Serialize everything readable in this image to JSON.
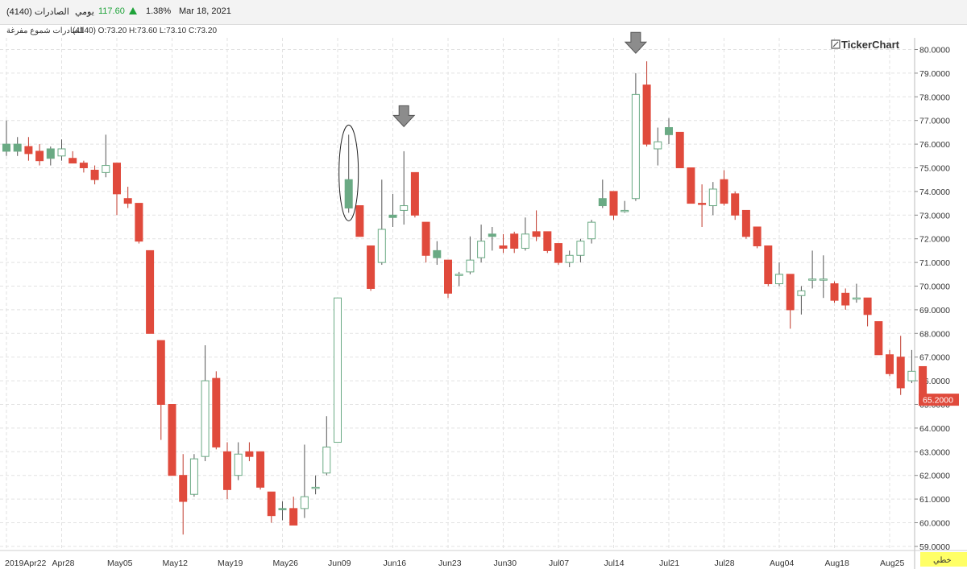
{
  "header": {
    "instrument": "الصادرات (4140)",
    "period": "يومي",
    "price": "117.60",
    "change_pct": "1.38%",
    "date": "Mar 18, 2021",
    "up_color": "#1fa33a",
    "up_icon": "triangle-up-icon"
  },
  "subheader": {
    "series_name": "الصادرات شموع مفرغة",
    "ohlc": "(4140) O:73.20 H:73.60 L:73.10 C:73.20"
  },
  "logo": {
    "text": "TickerChart",
    "icon": "tickerchart-logo-icon"
  },
  "last_price_label": "65.2000",
  "scale_mode": "خطي",
  "colors": {
    "up_fill": "#6aaa84",
    "down_fill": "#e04a3c",
    "hollow_stroke": "#6aaa84",
    "grid": "#e2e2e2",
    "last_bg": "#e04a3c",
    "mode_bg": "#ffff66"
  },
  "chart_data": {
    "type": "candlestick",
    "ylim": [
      59,
      80
    ],
    "y_ticks": [
      "59.0000",
      "60.0000",
      "61.0000",
      "62.0000",
      "63.0000",
      "64.0000",
      "65.0000",
      "66.0000",
      "67.0000",
      "68.0000",
      "69.0000",
      "70.0000",
      "71.0000",
      "72.0000",
      "73.0000",
      "74.0000",
      "75.0000",
      "76.0000",
      "77.0000",
      "78.0000",
      "79.0000",
      "80.0000"
    ],
    "x_ticks": [
      {
        "label": "2019Apr22",
        "index": 0
      },
      {
        "label": "Apr28",
        "index": 5
      },
      {
        "label": "May05",
        "index": 10
      },
      {
        "label": "May12",
        "index": 15
      },
      {
        "label": "May19",
        "index": 20
      },
      {
        "label": "May26",
        "index": 25
      },
      {
        "label": "Jun09",
        "index": 30
      },
      {
        "label": "Jun16",
        "index": 35
      },
      {
        "label": "Jun23",
        "index": 40
      },
      {
        "label": "Jun30",
        "index": 45
      },
      {
        "label": "Jul07",
        "index": 50
      },
      {
        "label": "Jul14",
        "index": 55
      },
      {
        "label": "Jul21",
        "index": 60
      },
      {
        "label": "Jul28",
        "index": 65
      },
      {
        "label": "Aug04",
        "index": 70
      },
      {
        "label": "Aug18",
        "index": 75
      },
      {
        "label": "Aug25",
        "index": 80
      }
    ],
    "candles": [
      {
        "o": 75.7,
        "h": 77.0,
        "l": 75.5,
        "c": 76.0,
        "style": "filled-up"
      },
      {
        "o": 75.7,
        "h": 76.3,
        "l": 75.5,
        "c": 76.0,
        "style": "filled-up"
      },
      {
        "o": 75.9,
        "h": 76.3,
        "l": 75.3,
        "c": 75.6,
        "style": "down"
      },
      {
        "o": 75.7,
        "h": 76.0,
        "l": 75.1,
        "c": 75.3,
        "style": "down"
      },
      {
        "o": 75.4,
        "h": 75.9,
        "l": 75.1,
        "c": 75.8,
        "style": "filled-up"
      },
      {
        "o": 75.5,
        "h": 76.2,
        "l": 75.3,
        "c": 75.8,
        "style": "hollow"
      },
      {
        "o": 75.4,
        "h": 75.7,
        "l": 75.2,
        "c": 75.2,
        "style": "down"
      },
      {
        "o": 75.2,
        "h": 75.3,
        "l": 74.8,
        "c": 75.0,
        "style": "down"
      },
      {
        "o": 74.9,
        "h": 75.1,
        "l": 74.3,
        "c": 74.5,
        "style": "down"
      },
      {
        "o": 74.8,
        "h": 76.4,
        "l": 74.6,
        "c": 75.1,
        "style": "hollow"
      },
      {
        "o": 75.2,
        "h": 75.2,
        "l": 73.0,
        "c": 73.9,
        "style": "down"
      },
      {
        "o": 73.7,
        "h": 74.2,
        "l": 73.3,
        "c": 73.5,
        "style": "down"
      },
      {
        "o": 73.5,
        "h": 73.5,
        "l": 71.8,
        "c": 71.9,
        "style": "down"
      },
      {
        "o": 71.5,
        "h": 71.5,
        "l": 68.0,
        "c": 68.0,
        "style": "down"
      },
      {
        "o": 67.7,
        "h": 67.7,
        "l": 63.5,
        "c": 65.0,
        "style": "down"
      },
      {
        "o": 65.0,
        "h": 65.0,
        "l": 62.0,
        "c": 62.0,
        "style": "down"
      },
      {
        "o": 62.0,
        "h": 62.9,
        "l": 59.5,
        "c": 60.9,
        "style": "down"
      },
      {
        "o": 61.2,
        "h": 62.9,
        "l": 61.1,
        "c": 62.7,
        "style": "hollow"
      },
      {
        "o": 62.8,
        "h": 67.5,
        "l": 62.6,
        "c": 66.0,
        "style": "hollow"
      },
      {
        "o": 66.1,
        "h": 66.4,
        "l": 63.1,
        "c": 63.2,
        "style": "down"
      },
      {
        "o": 63.0,
        "h": 63.4,
        "l": 61.0,
        "c": 61.4,
        "style": "down"
      },
      {
        "o": 62.0,
        "h": 63.4,
        "l": 61.8,
        "c": 62.9,
        "style": "hollow"
      },
      {
        "o": 63.0,
        "h": 63.4,
        "l": 62.6,
        "c": 62.8,
        "style": "down"
      },
      {
        "o": 63.0,
        "h": 63.0,
        "l": 61.4,
        "c": 61.5,
        "style": "down"
      },
      {
        "o": 61.3,
        "h": 61.3,
        "l": 60.0,
        "c": 60.3,
        "style": "down"
      },
      {
        "o": 60.6,
        "h": 60.9,
        "l": 60.1,
        "c": 60.6,
        "style": "filled-up"
      },
      {
        "o": 60.6,
        "h": 61.1,
        "l": 59.9,
        "c": 59.9,
        "style": "down"
      },
      {
        "o": 60.6,
        "h": 63.3,
        "l": 60.2,
        "c": 61.1,
        "style": "hollow"
      },
      {
        "o": 61.5,
        "h": 62.0,
        "l": 61.2,
        "c": 61.5,
        "style": "hollow"
      },
      {
        "o": 62.1,
        "h": 64.5,
        "l": 62.0,
        "c": 63.2,
        "style": "hollow"
      },
      {
        "o": 63.4,
        "h": 69.5,
        "l": 63.4,
        "c": 69.5,
        "style": "hollow"
      },
      {
        "o": 73.3,
        "h": 76.4,
        "l": 73.1,
        "c": 74.5,
        "style": "filled-up"
      },
      {
        "o": 73.4,
        "h": 73.4,
        "l": 72.1,
        "c": 72.1,
        "style": "down"
      },
      {
        "o": 71.7,
        "h": 71.7,
        "l": 69.8,
        "c": 69.9,
        "style": "down"
      },
      {
        "o": 71.0,
        "h": 74.5,
        "l": 70.9,
        "c": 72.4,
        "style": "hollow"
      },
      {
        "o": 73.0,
        "h": 73.9,
        "l": 72.5,
        "c": 72.9,
        "style": "filled-up"
      },
      {
        "o": 73.2,
        "h": 75.7,
        "l": 72.6,
        "c": 73.4,
        "style": "hollow"
      },
      {
        "o": 74.8,
        "h": 74.8,
        "l": 72.9,
        "c": 73.0,
        "style": "down"
      },
      {
        "o": 72.7,
        "h": 72.7,
        "l": 71.0,
        "c": 71.3,
        "style": "down"
      },
      {
        "o": 71.5,
        "h": 71.9,
        "l": 70.9,
        "c": 71.2,
        "style": "filled-up"
      },
      {
        "o": 71.1,
        "h": 71.1,
        "l": 69.5,
        "c": 69.7,
        "style": "down"
      },
      {
        "o": 70.5,
        "h": 70.6,
        "l": 70.0,
        "c": 70.5,
        "style": "hollow"
      },
      {
        "o": 70.6,
        "h": 72.1,
        "l": 70.5,
        "c": 71.1,
        "style": "hollow"
      },
      {
        "o": 71.2,
        "h": 72.6,
        "l": 71.0,
        "c": 71.9,
        "style": "hollow"
      },
      {
        "o": 72.1,
        "h": 72.5,
        "l": 71.5,
        "c": 72.2,
        "style": "filled-up"
      },
      {
        "o": 71.7,
        "h": 72.2,
        "l": 71.4,
        "c": 71.6,
        "style": "down"
      },
      {
        "o": 72.2,
        "h": 72.3,
        "l": 71.4,
        "c": 71.6,
        "style": "down"
      },
      {
        "o": 71.6,
        "h": 72.9,
        "l": 71.5,
        "c": 72.2,
        "style": "hollow"
      },
      {
        "o": 72.3,
        "h": 73.2,
        "l": 71.9,
        "c": 72.1,
        "style": "down"
      },
      {
        "o": 72.3,
        "h": 72.3,
        "l": 71.4,
        "c": 71.5,
        "style": "down"
      },
      {
        "o": 71.8,
        "h": 71.8,
        "l": 70.9,
        "c": 71.0,
        "style": "down"
      },
      {
        "o": 71.0,
        "h": 71.5,
        "l": 70.8,
        "c": 71.3,
        "style": "hollow"
      },
      {
        "o": 71.3,
        "h": 72.0,
        "l": 71.0,
        "c": 71.9,
        "style": "hollow"
      },
      {
        "o": 72.0,
        "h": 72.8,
        "l": 71.8,
        "c": 72.7,
        "style": "hollow"
      },
      {
        "o": 73.4,
        "h": 74.5,
        "l": 73.3,
        "c": 73.7,
        "style": "filled-up"
      },
      {
        "o": 74.0,
        "h": 74.0,
        "l": 72.8,
        "c": 73.0,
        "style": "down"
      },
      {
        "o": 73.2,
        "h": 73.6,
        "l": 73.1,
        "c": 73.2,
        "style": "hollow"
      },
      {
        "o": 73.7,
        "h": 79.0,
        "l": 73.6,
        "c": 78.1,
        "style": "hollow"
      },
      {
        "o": 78.5,
        "h": 79.5,
        "l": 75.9,
        "c": 76.0,
        "style": "down"
      },
      {
        "o": 75.8,
        "h": 76.7,
        "l": 75.1,
        "c": 76.1,
        "style": "hollow"
      },
      {
        "o": 76.4,
        "h": 77.1,
        "l": 76.0,
        "c": 76.7,
        "style": "filled-up"
      },
      {
        "o": 76.5,
        "h": 76.5,
        "l": 75.0,
        "c": 75.0,
        "style": "down"
      },
      {
        "o": 75.0,
        "h": 75.0,
        "l": 73.5,
        "c": 73.5,
        "style": "down"
      },
      {
        "o": 73.5,
        "h": 74.3,
        "l": 72.5,
        "c": 73.5,
        "style": "down"
      },
      {
        "o": 73.4,
        "h": 74.4,
        "l": 73.0,
        "c": 74.1,
        "style": "hollow"
      },
      {
        "o": 74.5,
        "h": 74.9,
        "l": 73.4,
        "c": 73.5,
        "style": "down"
      },
      {
        "o": 73.9,
        "h": 74.0,
        "l": 72.8,
        "c": 73.0,
        "style": "down"
      },
      {
        "o": 73.2,
        "h": 73.2,
        "l": 72.0,
        "c": 72.1,
        "style": "down"
      },
      {
        "o": 72.5,
        "h": 72.5,
        "l": 71.6,
        "c": 71.7,
        "style": "down"
      },
      {
        "o": 71.7,
        "h": 71.7,
        "l": 70.0,
        "c": 70.1,
        "style": "down"
      },
      {
        "o": 70.1,
        "h": 71.0,
        "l": 70.0,
        "c": 70.5,
        "style": "hollow"
      },
      {
        "o": 70.5,
        "h": 70.5,
        "l": 68.2,
        "c": 69.0,
        "style": "down"
      },
      {
        "o": 69.6,
        "h": 70.0,
        "l": 68.8,
        "c": 69.8,
        "style": "hollow"
      },
      {
        "o": 70.3,
        "h": 71.5,
        "l": 69.9,
        "c": 70.3,
        "style": "hollow"
      },
      {
        "o": 70.3,
        "h": 71.3,
        "l": 69.5,
        "c": 70.3,
        "style": "hollow"
      },
      {
        "o": 70.1,
        "h": 70.2,
        "l": 69.3,
        "c": 69.4,
        "style": "down"
      },
      {
        "o": 69.7,
        "h": 69.9,
        "l": 69.0,
        "c": 69.2,
        "style": "down"
      },
      {
        "o": 69.5,
        "h": 70.1,
        "l": 69.3,
        "c": 69.5,
        "style": "hollow"
      },
      {
        "o": 69.5,
        "h": 69.5,
        "l": 68.3,
        "c": 68.8,
        "style": "down"
      },
      {
        "o": 68.5,
        "h": 68.5,
        "l": 67.1,
        "c": 67.1,
        "style": "down"
      },
      {
        "o": 67.1,
        "h": 67.3,
        "l": 66.2,
        "c": 66.3,
        "style": "down"
      },
      {
        "o": 67.0,
        "h": 67.9,
        "l": 65.4,
        "c": 65.7,
        "style": "down"
      },
      {
        "o": 66.0,
        "h": 67.3,
        "l": 65.9,
        "c": 66.4,
        "style": "hollow"
      },
      {
        "o": 66.6,
        "h": 66.6,
        "l": 65.2,
        "c": 65.2,
        "style": "down"
      }
    ],
    "annotations": [
      {
        "type": "ellipse",
        "index": 31
      },
      {
        "type": "arrow-down",
        "index": 36,
        "y": 76.4
      },
      {
        "type": "arrow-down",
        "index": 57,
        "y": 79.5
      }
    ],
    "grid": true,
    "last_price": 65.2
  }
}
